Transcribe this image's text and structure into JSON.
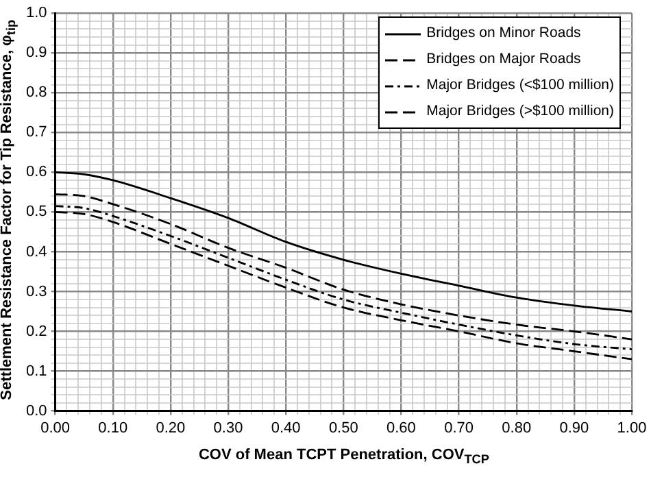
{
  "chart_data": {
    "type": "line",
    "xlabel": "COV of Mean TCPT Penetration, COV$_{TCP}$",
    "ylabel": "Settlement Resistance Factor for Tip Resistance, φ$_{tip}$",
    "x": [
      0,
      0.05,
      0.1,
      0.2,
      0.3,
      0.4,
      0.5,
      0.6,
      0.7,
      0.8,
      0.9,
      1.0
    ],
    "series": [
      {
        "name": "Bridges on Minor Roads",
        "color": "#000000",
        "line_style": "solid",
        "values": [
          0.6,
          0.595,
          0.58,
          0.535,
          0.485,
          0.425,
          0.38,
          0.345,
          0.315,
          0.285,
          0.265,
          0.25
        ]
      },
      {
        "name": "Bridges on Major Roads",
        "color": "#000000",
        "line_style": "dashed",
        "values": [
          0.545,
          0.54,
          0.52,
          0.47,
          0.41,
          0.36,
          0.305,
          0.268,
          0.24,
          0.217,
          0.2,
          0.18
        ]
      },
      {
        "name": "Major Bridges (<$100 million)",
        "color": "#000000",
        "line_style": "dotted",
        "values": [
          0.515,
          0.51,
          0.49,
          0.44,
          0.385,
          0.33,
          0.28,
          0.247,
          0.217,
          0.19,
          0.168,
          0.155
        ]
      },
      {
        "name": "Major Bridges (>$100 million)",
        "color": "#000000",
        "line_style": "dashed",
        "values": [
          0.5,
          0.495,
          0.475,
          0.42,
          0.365,
          0.31,
          0.26,
          0.228,
          0.2,
          0.17,
          0.15,
          0.13
        ]
      }
    ],
    "xlim": [
      0,
      1
    ],
    "ylim": [
      0,
      1
    ],
    "xticks": [
      {
        "value": 0,
        "label": "0.00"
      },
      {
        "value": 0.1,
        "label": "0.10"
      },
      {
        "value": 0.2,
        "label": "0.20"
      },
      {
        "value": 0.3,
        "label": "0.30"
      },
      {
        "value": 0.4,
        "label": "0.40"
      },
      {
        "value": 0.5,
        "label": "0.50"
      },
      {
        "value": 0.6,
        "label": "0.60"
      },
      {
        "value": 0.7,
        "label": "0.70"
      },
      {
        "value": 0.8,
        "label": "0.80"
      },
      {
        "value": 0.9,
        "label": "0.90"
      },
      {
        "value": 1,
        "label": "1.00"
      }
    ],
    "yticks": [
      {
        "value": 0,
        "label": "0.0"
      },
      {
        "value": 0.1,
        "label": "0.1"
      },
      {
        "value": 0.2,
        "label": "0.2"
      },
      {
        "value": 0.3,
        "label": "0.3"
      },
      {
        "value": 0.4,
        "label": "0.4"
      },
      {
        "value": 0.5,
        "label": "0.5"
      },
      {
        "value": 0.6,
        "label": "0.6"
      },
      {
        "value": 0.7,
        "label": "0.7"
      },
      {
        "value": 0.8,
        "label": "0.8"
      },
      {
        "value": 0.9,
        "label": "0.9"
      },
      {
        "value": 1,
        "label": "1.0"
      }
    ],
    "grid": true,
    "legend": "top right",
    "marker": "none"
  }
}
